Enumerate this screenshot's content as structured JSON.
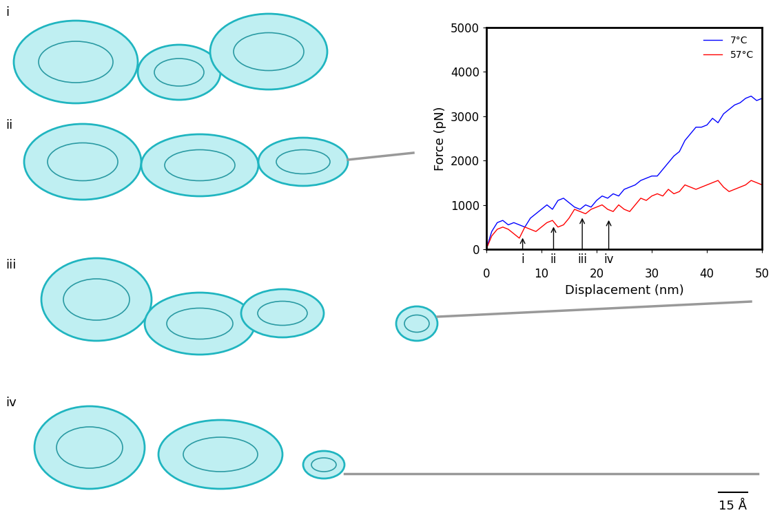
{
  "chart_data": {
    "type": "line",
    "x_label": "Displacement (nm)",
    "y_label": "Force (pN)",
    "x": [
      0,
      1,
      2,
      3,
      4,
      5,
      6,
      7,
      8,
      9,
      10,
      11,
      12,
      13,
      14,
      15,
      16,
      17,
      18,
      19,
      20,
      21,
      22,
      23,
      24,
      25,
      26,
      27,
      28,
      29,
      30,
      31,
      32,
      33,
      34,
      35,
      36,
      37,
      38,
      39,
      40,
      41,
      42,
      43,
      44,
      45,
      46,
      47,
      48,
      49,
      50
    ],
    "series": [
      {
        "name": "7°C",
        "color": "#0000ff",
        "values": [
          0,
          400,
          600,
          650,
          550,
          600,
          550,
          500,
          700,
          800,
          900,
          1000,
          900,
          1100,
          1150,
          1050,
          950,
          900,
          1000,
          950,
          1100,
          1200,
          1150,
          1250,
          1200,
          1350,
          1400,
          1450,
          1550,
          1600,
          1650,
          1650,
          1800,
          1950,
          2100,
          2200,
          2450,
          2600,
          2750,
          2750,
          2800,
          2950,
          2850,
          3050,
          3150,
          3250,
          3300,
          3400,
          3450,
          3350,
          3400
        ]
      },
      {
        "name": "57°C",
        "color": "#ff0000",
        "values": [
          0,
          300,
          450,
          500,
          450,
          350,
          250,
          500,
          450,
          400,
          500,
          600,
          650,
          500,
          550,
          700,
          900,
          850,
          800,
          900,
          950,
          1000,
          900,
          850,
          1000,
          900,
          850,
          1000,
          1150,
          1100,
          1200,
          1250,
          1200,
          1350,
          1250,
          1300,
          1450,
          1400,
          1350,
          1400,
          1450,
          1500,
          1550,
          1400,
          1300,
          1350,
          1400,
          1450,
          1550,
          1500,
          1450
        ]
      }
    ],
    "xlim": [
      0,
      50
    ],
    "ylim": [
      0,
      5000
    ],
    "xticks": [
      0,
      10,
      20,
      30,
      40,
      50
    ],
    "yticks": [
      0,
      1000,
      2000,
      3000,
      4000,
      5000
    ],
    "legend": "upper right",
    "annotations": [
      {
        "label": "i",
        "x": 6.6,
        "y": 300
      },
      {
        "label": "ii",
        "x": 12.2,
        "y": 550
      },
      {
        "label": "iii",
        "x": 17.4,
        "y": 750
      },
      {
        "label": "iv",
        "x": 22.2,
        "y": 700
      }
    ]
  },
  "panels": [
    "i",
    "ii",
    "iii",
    "iv"
  ],
  "scale_bar": "15 Å"
}
